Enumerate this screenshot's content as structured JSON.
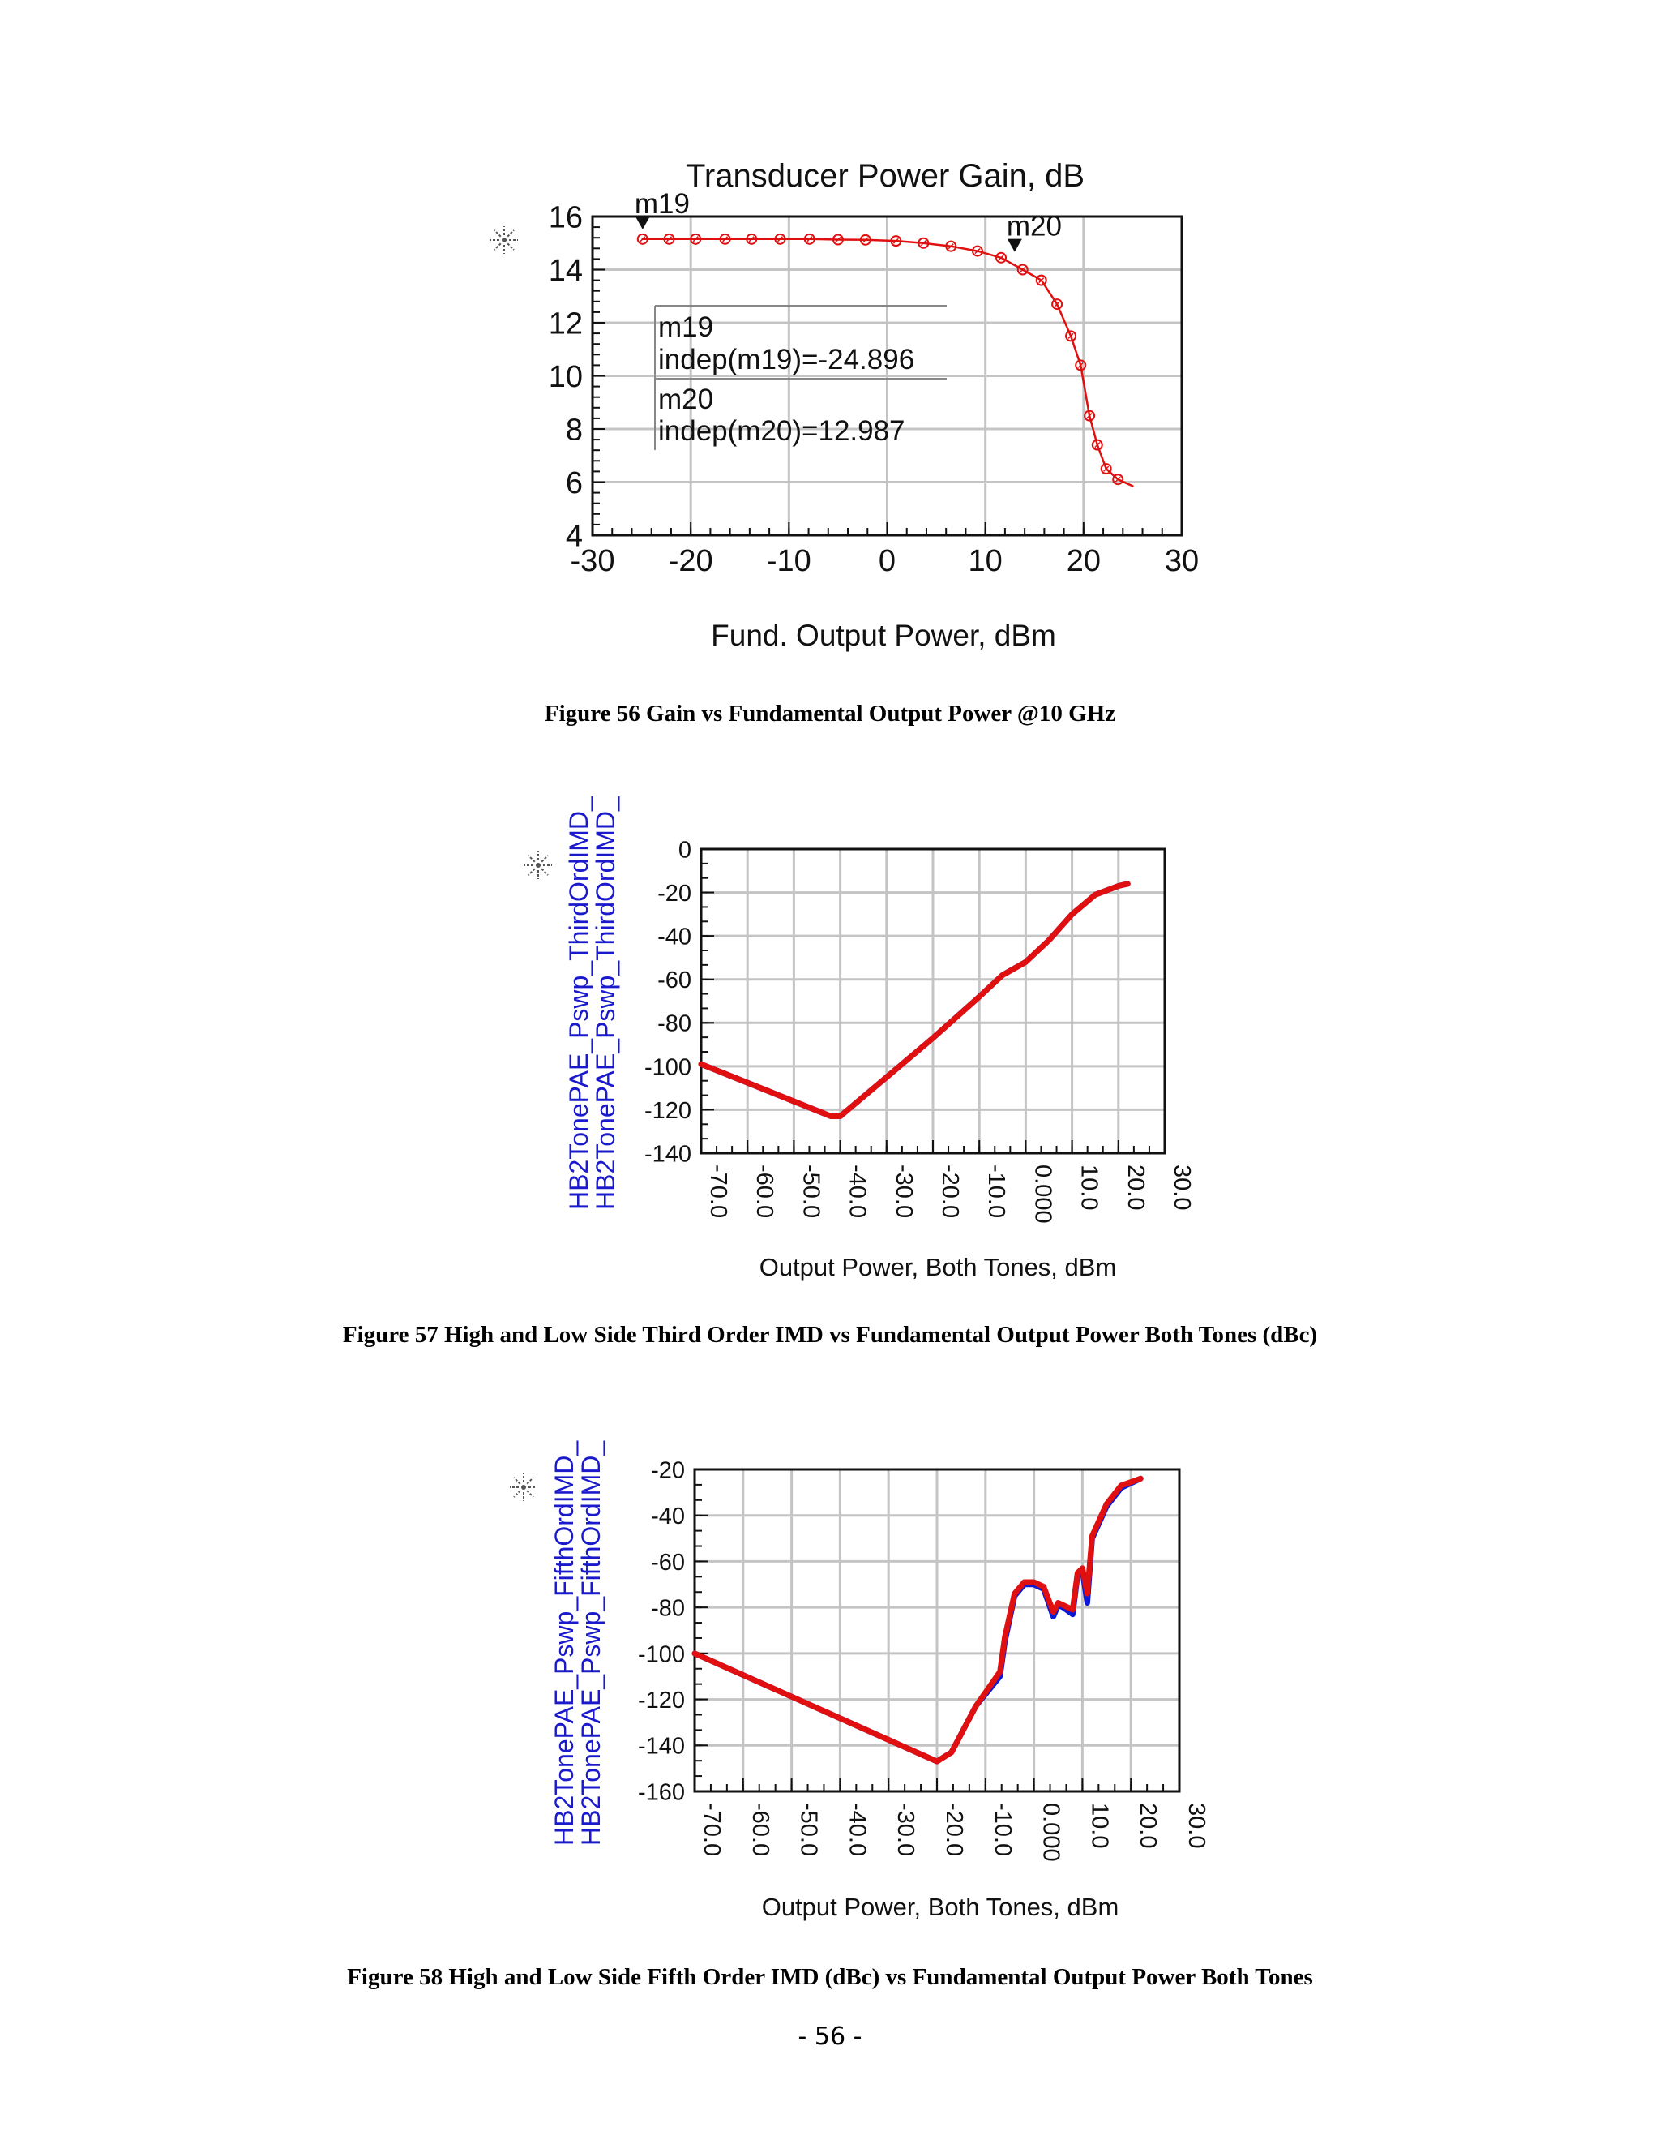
{
  "page": {
    "number": "- 56 -"
  },
  "figures": [
    {
      "caption": "Figure 56 Gain vs Fundamental Output Power @10 GHz"
    },
    {
      "caption": "Figure 57 High and Low Side Third Order IMD vs Fundamental Output Power Both Tones (dBc)"
    },
    {
      "caption": "Figure 58 High and Low Side Fifth Order IMD (dBc) vs Fundamental Output Power Both Tones"
    }
  ],
  "chart_data": [
    {
      "type": "line",
      "title": "Transducer Power Gain, dB",
      "xlabel": "Fund. Output Power, dBm",
      "ylabel": "",
      "xlim": [
        -30,
        30
      ],
      "ylim": [
        4,
        16
      ],
      "xticks": [
        "-30",
        "-20",
        "-10",
        "0",
        "10",
        "20",
        "30"
      ],
      "yticks": [
        "4",
        "6",
        "8",
        "10",
        "12",
        "14",
        "16"
      ],
      "grid": true,
      "series": [
        {
          "color": "#e01010",
          "markers": "circle",
          "x": [
            -24.9,
            -22.2,
            -19.5,
            -16.5,
            -13.8,
            -10.9,
            -7.9,
            -5.0,
            -2.2,
            0.9,
            3.7,
            6.5,
            9.2,
            11.6,
            13.8,
            15.7,
            17.3,
            18.7,
            19.7,
            20.6,
            21.4,
            22.3,
            23.5,
            25.0
          ],
          "y": [
            15.15,
            15.15,
            15.15,
            15.15,
            15.15,
            15.15,
            15.15,
            15.13,
            15.12,
            15.08,
            15.0,
            14.88,
            14.7,
            14.45,
            14.0,
            13.6,
            12.7,
            11.5,
            10.4,
            8.5,
            7.4,
            6.5,
            6.1,
            5.85
          ]
        }
      ],
      "markers": [
        {
          "name": "m19",
          "x": -24.896,
          "y": 15.15,
          "readout": [
            "m19",
            "indep(m19)=-24.896"
          ]
        },
        {
          "name": "m20",
          "x": 12.987,
          "y": 14.3,
          "readout": [
            "m20",
            "indep(m20)=12.987"
          ]
        }
      ]
    },
    {
      "type": "line",
      "title": "",
      "xlabel": "Output Power, Both Tones, dBm",
      "ylabel": [
        "HB2TonePAE_Pswp_ThirdOrdIMD_",
        "HB2TonePAE_Pswp_ThirdOrdIMD_"
      ],
      "xlim": [
        -70,
        30
      ],
      "ylim": [
        -140,
        0
      ],
      "xticks": [
        "-70.0",
        "-60.0",
        "-50.0",
        "-40.0",
        "-30.0",
        "-20.0",
        "-10.0",
        "0.000",
        "10.0",
        "20.0",
        "30.0"
      ],
      "yticks": [
        "0",
        "-20",
        "-40",
        "-60",
        "-80",
        "-100",
        "-120",
        "-140"
      ],
      "grid": true,
      "series": [
        {
          "color": "#0b1ad6",
          "x": [
            -70,
            -42,
            -40,
            -30,
            -20,
            -10,
            -5,
            0,
            5,
            10,
            15,
            20,
            22
          ],
          "y": [
            -99,
            -123,
            -123,
            -105,
            -87,
            -68,
            -58,
            -52,
            -42,
            -30,
            -21,
            -17,
            -16
          ]
        },
        {
          "color": "#e01010",
          "x": [
            -70,
            -42,
            -40,
            -30,
            -20,
            -10,
            -5,
            0,
            5,
            10,
            15,
            20,
            22
          ],
          "y": [
            -99,
            -123,
            -123,
            -105,
            -87,
            -68,
            -58,
            -52,
            -42,
            -30,
            -21,
            -17,
            -16
          ]
        }
      ]
    },
    {
      "type": "line",
      "title": "",
      "xlabel": "Output Power, Both Tones, dBm",
      "ylabel": [
        "HB2TonePAE_Pswp_FifthOrdIMD_",
        "HB2TonePAE_Pswp_FifthOrdIMD_"
      ],
      "xlim": [
        -70,
        30
      ],
      "ylim": [
        -160,
        -20
      ],
      "xticks": [
        "-70.0",
        "-60.0",
        "-50.0",
        "-40.0",
        "-30.0",
        "-20.0",
        "-10.0",
        "0.000",
        "10.0",
        "20.0",
        "30.0"
      ],
      "yticks": [
        "-20",
        "-40",
        "-60",
        "-80",
        "-100",
        "-120",
        "-140",
        "-160"
      ],
      "grid": true,
      "series": [
        {
          "color": "#0b1ad6",
          "x": [
            -70,
            -20,
            -17,
            -12,
            -7,
            -6,
            -4,
            -2,
            0,
            2,
            4,
            5,
            6,
            8,
            9,
            10,
            11,
            12,
            15,
            18,
            22
          ],
          "y": [
            -100,
            -147,
            -143,
            -123,
            -110,
            -95,
            -75,
            -70,
            -70,
            -72,
            -84,
            -79,
            -80,
            -83,
            -66,
            -64,
            -78,
            -50,
            -36,
            -28,
            -24
          ]
        },
        {
          "color": "#e01010",
          "x": [
            -70,
            -20,
            -17,
            -12,
            -7,
            -6,
            -4,
            -2,
            0,
            2,
            4,
            5,
            6,
            8,
            9,
            10,
            11,
            12,
            15,
            18,
            22
          ],
          "y": [
            -100,
            -147,
            -143,
            -123,
            -108,
            -93,
            -74,
            -69,
            -69,
            -71,
            -82,
            -78,
            -79,
            -81,
            -65,
            -63,
            -74,
            -49,
            -35,
            -27,
            -24
          ]
        }
      ]
    }
  ]
}
